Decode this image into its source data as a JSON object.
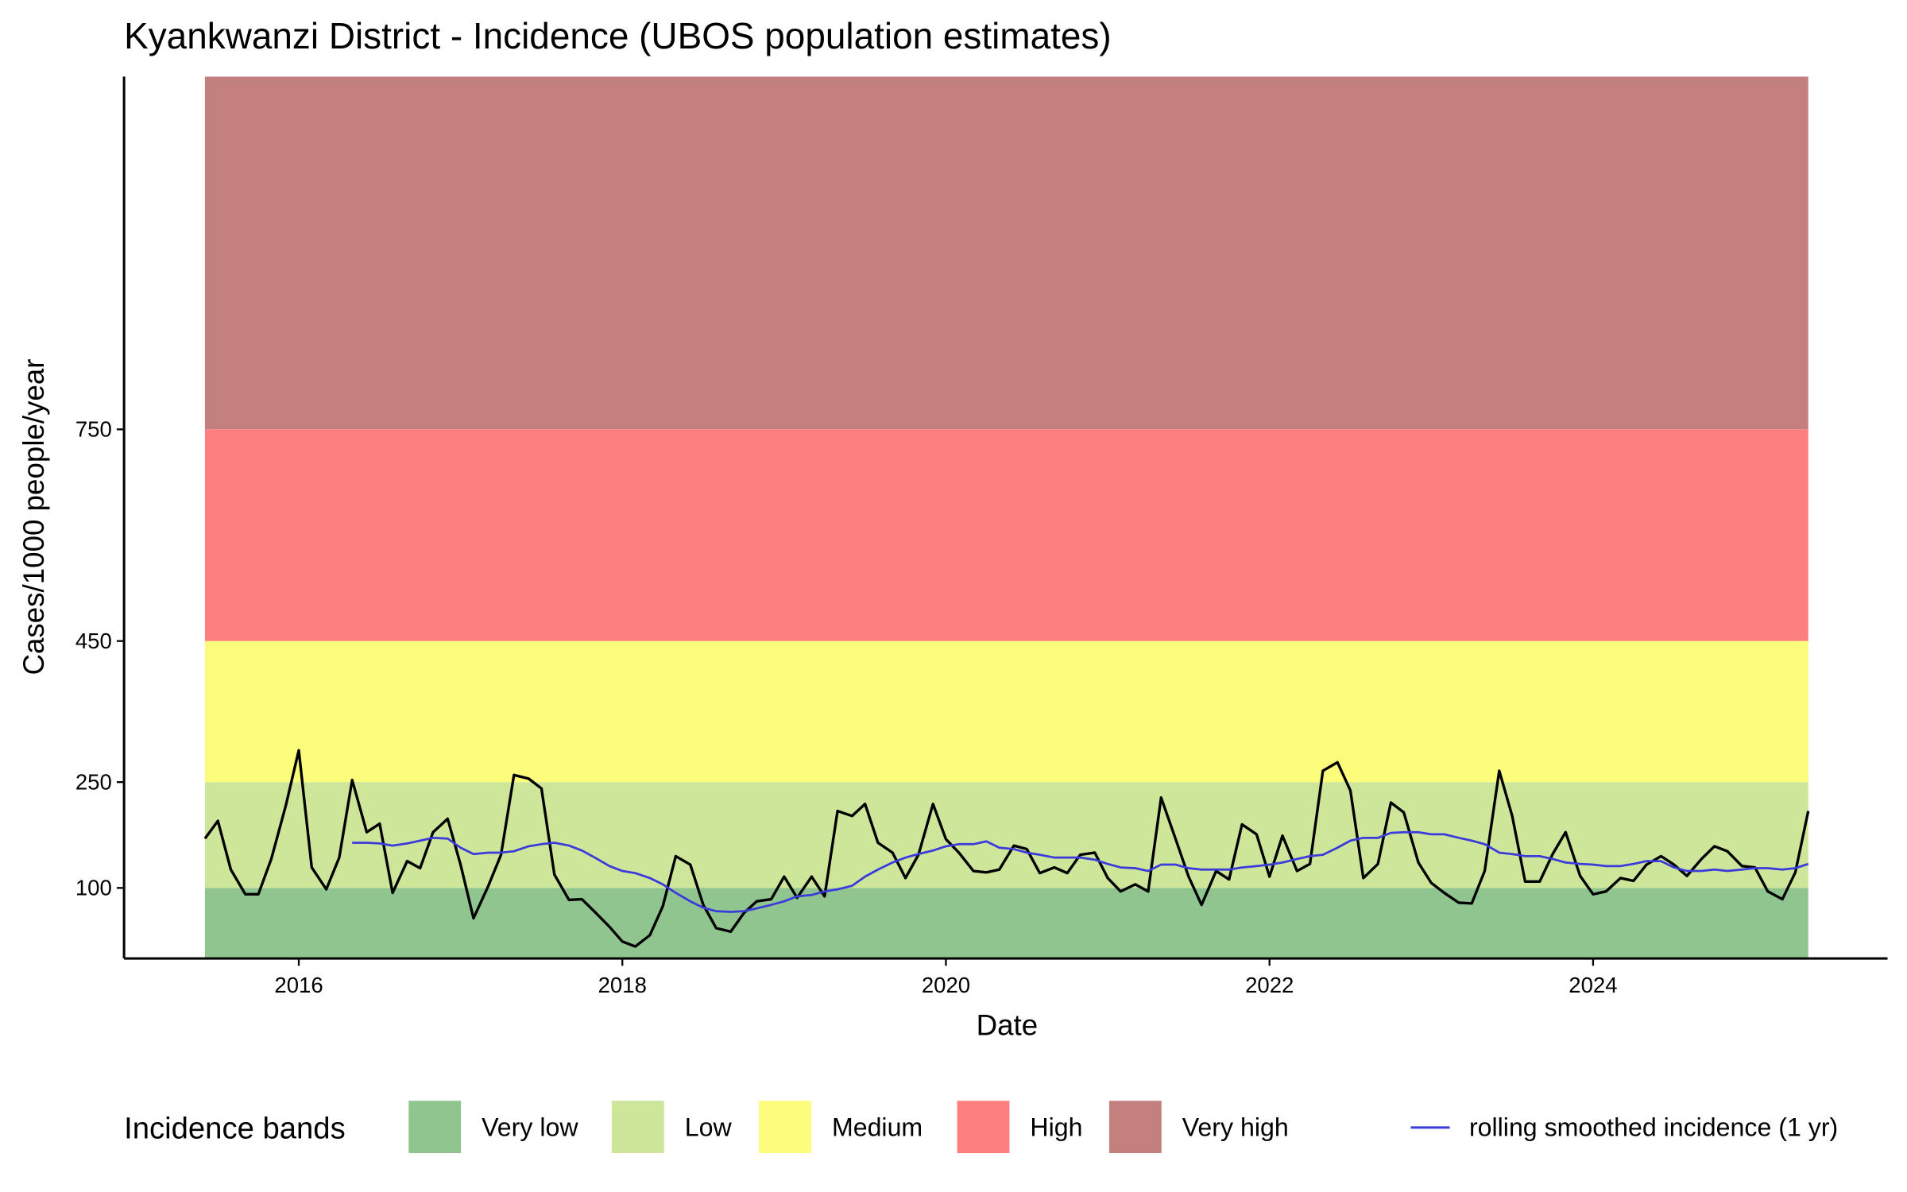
{
  "chart_data": {
    "type": "line",
    "title": "Kyankwanzi District - Incidence (UBOS population estimates)",
    "x_label": "Date",
    "y_label": "Cases/1000 people/year",
    "legend_title": "Incidence bands",
    "legend": "bottom",
    "xlim": [
      2014.92,
      2025.82
    ],
    "xticks": [
      2016,
      2018,
      2020,
      2022,
      2024
    ],
    "ylim": [
      0,
      1250
    ],
    "yticks": [
      100,
      250,
      450,
      750
    ],
    "bands": [
      {
        "name": "Very low",
        "color": "#90c590",
        "range": [
          0,
          100
        ]
      },
      {
        "name": "Low",
        "color": "#cee699",
        "range": [
          100,
          250
        ]
      },
      {
        "name": "Medium",
        "color": "#fdfd7c",
        "range": [
          250,
          450
        ]
      },
      {
        "name": "High",
        "color": "#fe7f7f",
        "range": [
          450,
          750
        ]
      },
      {
        "name": "Very high",
        "color": "#c47f7f",
        "range": [
          750,
          1250
        ]
      }
    ],
    "x": [
      2015.42,
      2015.5,
      2015.58,
      2015.67,
      2015.75,
      2015.83,
      2015.92,
      2016.0,
      2016.08,
      2016.17,
      2016.25,
      2016.33,
      2016.42,
      2016.5,
      2016.58,
      2016.67,
      2016.75,
      2016.83,
      2016.92,
      2017.0,
      2017.08,
      2017.17,
      2017.25,
      2017.33,
      2017.42,
      2017.5,
      2017.58,
      2017.67,
      2017.75,
      2017.83,
      2017.92,
      2018.0,
      2018.08,
      2018.17,
      2018.25,
      2018.33,
      2018.42,
      2018.5,
      2018.58,
      2018.67,
      2018.75,
      2018.83,
      2018.92,
      2019.0,
      2019.08,
      2019.17,
      2019.25,
      2019.33,
      2019.42,
      2019.5,
      2019.58,
      2019.67,
      2019.75,
      2019.83,
      2019.92,
      2020.0,
      2020.08,
      2020.17,
      2020.25,
      2020.33,
      2020.42,
      2020.5,
      2020.58,
      2020.67,
      2020.75,
      2020.83,
      2020.92,
      2021.0,
      2021.08,
      2021.17,
      2021.25,
      2021.33,
      2021.42,
      2021.5,
      2021.58,
      2021.67,
      2021.75,
      2021.83,
      2021.92,
      2022.0,
      2022.08,
      2022.17,
      2022.25,
      2022.33,
      2022.42,
      2022.5,
      2022.58,
      2022.67,
      2022.75,
      2022.83,
      2022.92,
      2023.0,
      2023.08,
      2023.17,
      2023.25,
      2023.33,
      2023.42,
      2023.5,
      2023.58,
      2023.67,
      2023.75,
      2023.83,
      2023.92,
      2024.0,
      2024.08,
      2024.17,
      2024.25,
      2024.33,
      2024.42,
      2024.5,
      2024.58,
      2024.67,
      2024.75,
      2024.83,
      2024.92,
      2025.0,
      2025.08,
      2025.17,
      2025.25,
      2025.33
    ],
    "series": [
      {
        "color": "#000000",
        "values": [
          170,
          195,
          126,
          91,
          91,
          141,
          217,
          295,
          129,
          98,
          143,
          253,
          179,
          191,
          93,
          138,
          128,
          179,
          198,
          133,
          57,
          102,
          147,
          260,
          255,
          241,
          119,
          83,
          84,
          66,
          45,
          24,
          17,
          33,
          74,
          145,
          133,
          76,
          43,
          38,
          64,
          81,
          84,
          116,
          86,
          116,
          88,
          209,
          202,
          219,
          164,
          150,
          114,
          147,
          219,
          169,
          150,
          124,
          122,
          126,
          160,
          155,
          121,
          129,
          121,
          147,
          150,
          114,
          95,
          105,
          95,
          228,
          169,
          116,
          76,
          124,
          112,
          190,
          176,
          116,
          174,
          124,
          134,
          266,
          278,
          238,
          114,
          134,
          221,
          207,
          136,
          107,
          93,
          79,
          78,
          124,
          266,
          202,
          109,
          109,
          148,
          179,
          117,
          91,
          95,
          114,
          110,
          133,
          145,
          133,
          117,
          141,
          159,
          152,
          131,
          129,
          95,
          84,
          122,
          209
        ]
      },
      {
        "name": "rolling smoothed incidence (1 yr)",
        "color": "#3b3bdc",
        "values": [
          null,
          null,
          null,
          null,
          null,
          null,
          null,
          null,
          null,
          null,
          null,
          164,
          164,
          163,
          160,
          163,
          167,
          171,
          170,
          157,
          148,
          150,
          150,
          152,
          159,
          162,
          164,
          160,
          153,
          143,
          131,
          124,
          121,
          114,
          105,
          93,
          81,
          72,
          67,
          66,
          67,
          71,
          76,
          81,
          88,
          90,
          95,
          98,
          103,
          116,
          126,
          136,
          143,
          148,
          153,
          159,
          162,
          162,
          166,
          157,
          155,
          150,
          147,
          143,
          143,
          143,
          140,
          134,
          129,
          128,
          124,
          133,
          133,
          128,
          126,
          126,
          126,
          129,
          131,
          133,
          136,
          141,
          145,
          147,
          157,
          167,
          171,
          171,
          178,
          179,
          179,
          176,
          176,
          171,
          167,
          162,
          150,
          148,
          145,
          145,
          141,
          136,
          134,
          133,
          131,
          131,
          134,
          138,
          138,
          129,
          124,
          124,
          126,
          124,
          126,
          128,
          128,
          126,
          128,
          134
        ]
      }
    ]
  }
}
